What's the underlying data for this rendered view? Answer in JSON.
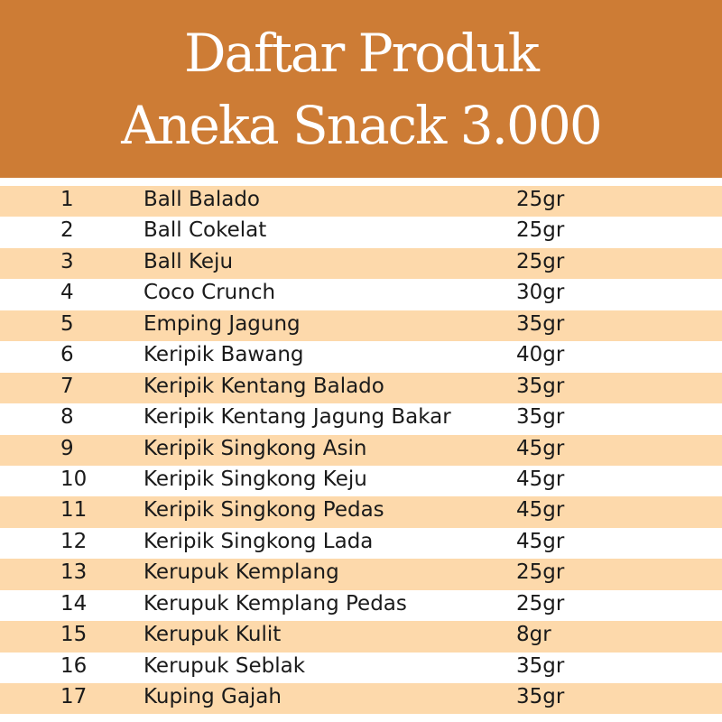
{
  "header": {
    "line1": "Daftar Produk",
    "line2": "Aneka Snack 3.000"
  },
  "colors": {
    "header_bg": "#cd7c35",
    "stripe": "#fdd9ab"
  },
  "products": [
    {
      "no": "1",
      "name": "Ball Balado",
      "weight": "25gr"
    },
    {
      "no": "2",
      "name": "Ball Cokelat",
      "weight": "25gr"
    },
    {
      "no": "3",
      "name": "Ball Keju",
      "weight": "25gr"
    },
    {
      "no": "4",
      "name": "Coco Crunch",
      "weight": "30gr"
    },
    {
      "no": "5",
      "name": "Emping Jagung",
      "weight": "35gr"
    },
    {
      "no": "6",
      "name": "Keripik Bawang",
      "weight": "40gr"
    },
    {
      "no": "7",
      "name": "Keripik Kentang Balado",
      "weight": "35gr"
    },
    {
      "no": "8",
      "name": "Keripik Kentang Jagung Bakar",
      "weight": "35gr"
    },
    {
      "no": "9",
      "name": "Keripik Singkong Asin",
      "weight": "45gr"
    },
    {
      "no": "10",
      "name": "Keripik Singkong Keju",
      "weight": "45gr"
    },
    {
      "no": "11",
      "name": "Keripik Singkong Pedas",
      "weight": "45gr"
    },
    {
      "no": "12",
      "name": "Keripik Singkong Lada",
      "weight": "45gr"
    },
    {
      "no": "13",
      "name": "Kerupuk Kemplang",
      "weight": "25gr"
    },
    {
      "no": "14",
      "name": "Kerupuk Kemplang Pedas",
      "weight": "25gr"
    },
    {
      "no": "15",
      "name": "Kerupuk Kulit",
      "weight": "8gr"
    },
    {
      "no": "16",
      "name": "Kerupuk Seblak",
      "weight": "35gr"
    },
    {
      "no": "17",
      "name": "Kuping Gajah",
      "weight": "35gr"
    }
  ]
}
